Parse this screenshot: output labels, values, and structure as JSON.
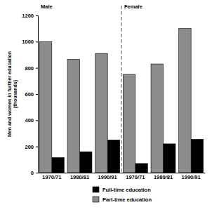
{
  "chart_data": {
    "type": "bar",
    "annotations": [
      "Male",
      "Female"
    ],
    "categories": [
      "1970/71",
      "1980/81",
      "1990/91",
      "1970/71",
      "1980/81",
      "1990/91"
    ],
    "series": [
      {
        "name": "Full-time education",
        "color": "#000000",
        "values": [
          115,
          160,
          250,
          70,
          220,
          255
        ]
      },
      {
        "name": "Part-time education",
        "color": "#8c8c8c",
        "values": [
          1000,
          865,
          910,
          750,
          830,
          1100
        ]
      }
    ],
    "y_label": "Men and women in further education\n(thousands)",
    "ylim": [
      0,
      1200
    ],
    "yticks": [
      0,
      200,
      400,
      600,
      800,
      1000,
      1200
    ],
    "legend": "bottom"
  }
}
